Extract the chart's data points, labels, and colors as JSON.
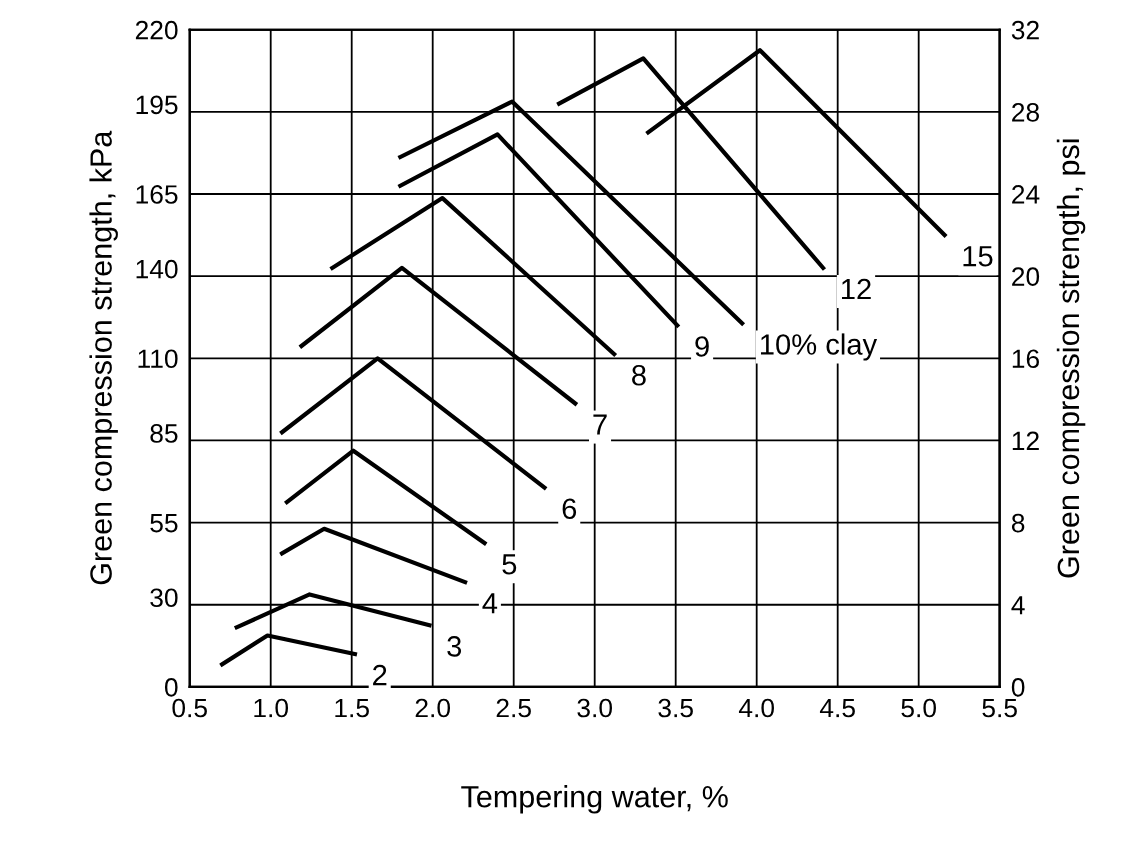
{
  "chart_data": {
    "type": "line",
    "xlabel": "Tempering water, %",
    "ylabel": "Green compression strength, kPa",
    "y2label": "Green compression strength, psi",
    "xlim": [
      0.5,
      5.5
    ],
    "xticks": [
      0.5,
      {
        "value": 1,
        "label": "1.0"
      },
      1.5,
      {
        "value": 2,
        "label": "2.0"
      },
      2.5,
      {
        "value": 3,
        "label": "3.0"
      },
      3.5,
      {
        "value": 4,
        "label": "4.0"
      },
      4.5,
      {
        "value": 5,
        "label": "5.0"
      },
      5.5
    ],
    "ylim": [
      0,
      220
    ],
    "yticks": [
      0,
      30,
      55,
      85,
      110,
      140,
      165,
      195,
      220
    ],
    "y2lim": [
      0,
      32
    ],
    "y2ticks": [
      0,
      4,
      8,
      12,
      16,
      20,
      24,
      28,
      32
    ],
    "grid": true,
    "series": [
      {
        "name": "2",
        "color": "#000000",
        "axis": "y2",
        "x": [
          0.7,
          0.98,
          1.52
        ],
        "values": [
          1.1,
          2.5,
          1.6
        ]
      },
      {
        "name": "3",
        "color": "#000000",
        "axis": "y2",
        "x": [
          0.79,
          1.24,
          1.98
        ],
        "values": [
          2.9,
          4.5,
          3.0
        ]
      },
      {
        "name": "4",
        "color": "#000000",
        "axis": "y2",
        "x": [
          1.07,
          1.33,
          2.2
        ],
        "values": [
          6.5,
          7.7,
          5.1
        ]
      },
      {
        "name": "5",
        "color": "#000000",
        "axis": "y2",
        "x": [
          1.1,
          1.51,
          2.32
        ],
        "values": [
          9.0,
          11.5,
          7.0
        ]
      },
      {
        "name": "6",
        "color": "#000000",
        "axis": "y2",
        "x": [
          1.07,
          1.66,
          2.69
        ],
        "values": [
          12.4,
          16.0,
          9.7
        ]
      },
      {
        "name": "7",
        "color": "#000000",
        "axis": "y2",
        "x": [
          1.19,
          1.81,
          2.88
        ],
        "values": [
          16.6,
          20.4,
          13.8
        ]
      },
      {
        "name": "8",
        "color": "#000000",
        "axis": "y2",
        "x": [
          1.38,
          2.06,
          3.12
        ],
        "values": [
          20.4,
          23.8,
          16.2
        ]
      },
      {
        "name": "9",
        "color": "#000000",
        "axis": "y2",
        "x": [
          1.8,
          2.4,
          3.51
        ],
        "values": [
          24.4,
          26.9,
          17.6
        ]
      },
      {
        "name": "10% clay",
        "color": "#000000",
        "axis": "y2",
        "x": [
          1.8,
          2.49,
          3.91
        ],
        "values": [
          25.8,
          28.5,
          17.7
        ]
      },
      {
        "name": "12",
        "color": "#000000",
        "axis": "y2",
        "x": [
          2.78,
          3.3,
          4.41
        ],
        "values": [
          28.4,
          30.6,
          20.4
        ]
      },
      {
        "name": "15",
        "color": "#000000",
        "axis": "y2",
        "x": [
          3.33,
          4.02,
          5.16
        ],
        "values": [
          27.0,
          31.0,
          22.0
        ]
      }
    ]
  }
}
